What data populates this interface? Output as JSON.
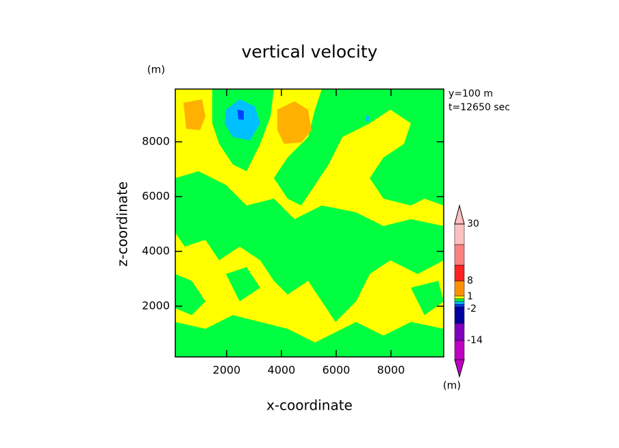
{
  "chart_data": {
    "type": "contour",
    "title": "vertical velocity",
    "xlabel": "x-coordinate",
    "ylabel": "z-coordinate",
    "x_unit": "(m)",
    "y_unit": "(m)",
    "colorbar_unit": "(m)",
    "annotations": [
      "y=100 m",
      "t=12650 sec"
    ],
    "xlim": [
      125,
      9925
    ],
    "ylim": [
      150,
      9925
    ],
    "xticks": [
      2000,
      4000,
      6000,
      8000
    ],
    "yticks": [
      2000,
      4000,
      6000,
      8000
    ],
    "colorbar": {
      "levels": [
        -30,
        -14,
        -8,
        -2,
        -1,
        0,
        1,
        2,
        8,
        16,
        20,
        30
      ],
      "colors": [
        "#c000c0",
        "#c000c0",
        "#8000c0",
        "#0000a0",
        "#0040ff",
        "#00c0ff",
        "#00ff40",
        "#ffff00",
        "#ff9000",
        "#ff2020",
        "#ff8080",
        "#ffc0c0",
        "#ffc0c0"
      ],
      "ticks": [
        30,
        8,
        1,
        -2,
        -14
      ]
    }
  }
}
